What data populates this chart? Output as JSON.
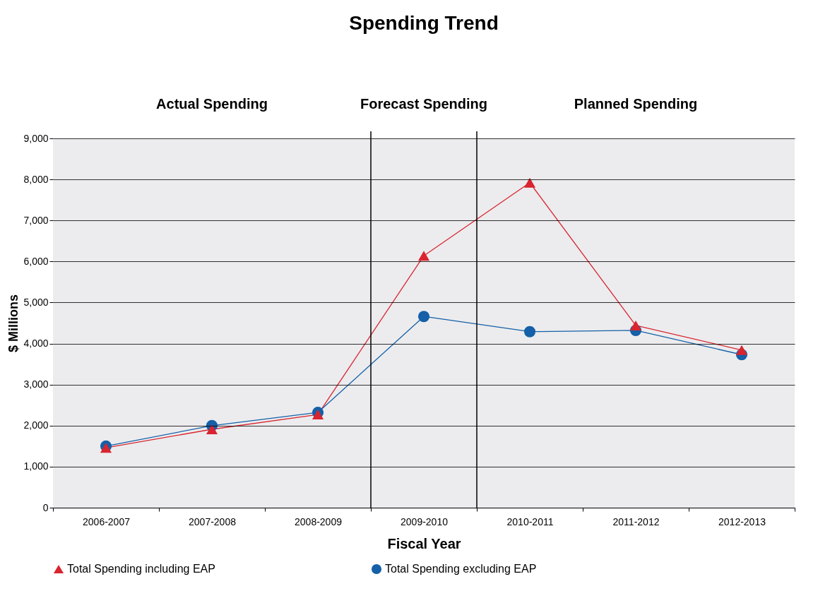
{
  "chart_data": {
    "type": "line",
    "title": "Spending Trend",
    "xlabel": "Fiscal Year",
    "ylabel": "$ Millions",
    "categories": [
      "2006-2007",
      "2007-2008",
      "2008-2009",
      "2009-2010",
      "2010-2011",
      "2011-2012",
      "2012-2013"
    ],
    "series": [
      {
        "name": "Total Spending including EAP",
        "color": "#d9252f",
        "marker": "triangle",
        "values": [
          1460,
          1910,
          2270,
          6140,
          7920,
          4440,
          3840
        ]
      },
      {
        "name": "Total Spending excluding EAP",
        "color": "#1560a8",
        "marker": "circle",
        "values": [
          1500,
          2000,
          2320,
          4660,
          4290,
          4320,
          3730
        ]
      }
    ],
    "bands": [
      {
        "axis": "x",
        "from": "2006-2007",
        "to": "2008-2009",
        "label": "Actual Spending",
        "color": "#ececee"
      },
      {
        "axis": "x",
        "from": "2009-2010",
        "to": "2009-2010",
        "label": "Forecast Spending",
        "color": "#ececee"
      },
      {
        "axis": "x",
        "from": "2010-2011",
        "to": "2012-2013",
        "label": "Planned Spending",
        "color": "#ececee"
      }
    ],
    "ylim": [
      0,
      9000
    ],
    "yticks": [
      0,
      {
        "value": 1000,
        "label": "1,000"
      },
      {
        "value": 2000,
        "label": "2,000"
      },
      {
        "value": 3000,
        "label": "3,000"
      },
      {
        "value": 4000,
        "label": "4,000"
      },
      {
        "value": 5000,
        "label": "5,000"
      },
      {
        "value": 6000,
        "label": "6,000"
      },
      {
        "value": 7000,
        "label": "7,000"
      },
      {
        "value": 8000,
        "label": "8,000"
      },
      {
        "value": 9000,
        "label": "9,000"
      }
    ],
    "grid": "y",
    "legend": "bottom",
    "line_style": "solid"
  }
}
